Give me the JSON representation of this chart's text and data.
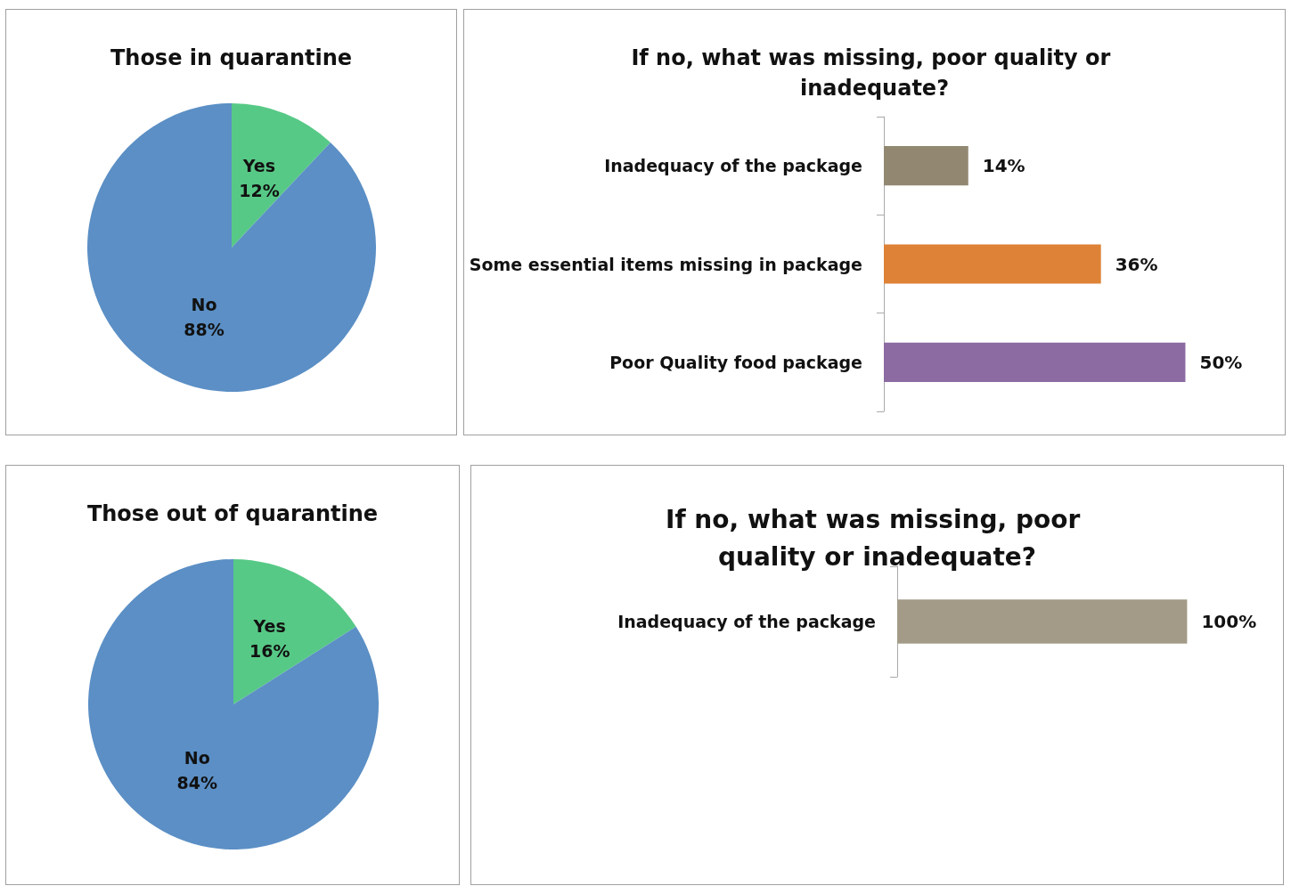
{
  "chart_data": [
    {
      "type": "pie",
      "title": "Those in quarantine",
      "categories": [
        "Yes",
        "No"
      ],
      "values": [
        12,
        88
      ],
      "colors": [
        "#57c986",
        "#5b8fc5"
      ],
      "value_labels": [
        "12%",
        "88%"
      ]
    },
    {
      "type": "bar",
      "orientation": "horizontal",
      "title": "If no, what was missing, poor quality or inadequate?",
      "categories": [
        "Inadequacy of the package",
        "Some essential items missing in package",
        "Poor Quality food package"
      ],
      "values": [
        14,
        36,
        50
      ],
      "colors": [
        "#928872",
        "#dd8236",
        "#8c6ba3"
      ],
      "value_labels": [
        "14%",
        "36%",
        "50%"
      ],
      "tick_labels": "y"
    },
    {
      "type": "pie",
      "title": "Those out of quarantine",
      "categories": [
        "Yes",
        "No"
      ],
      "values": [
        16,
        84
      ],
      "colors": [
        "#57c986",
        "#5b8fc5"
      ],
      "value_labels": [
        "16%",
        "84%"
      ]
    },
    {
      "type": "bar",
      "orientation": "horizontal",
      "title": "If no, what was missing, poor quality or inadequate?",
      "categories": [
        "Inadequacy of the package"
      ],
      "values": [
        100
      ],
      "colors": [
        "#a39b87"
      ],
      "value_labels": [
        "100%"
      ],
      "tick_labels": "y"
    }
  ]
}
